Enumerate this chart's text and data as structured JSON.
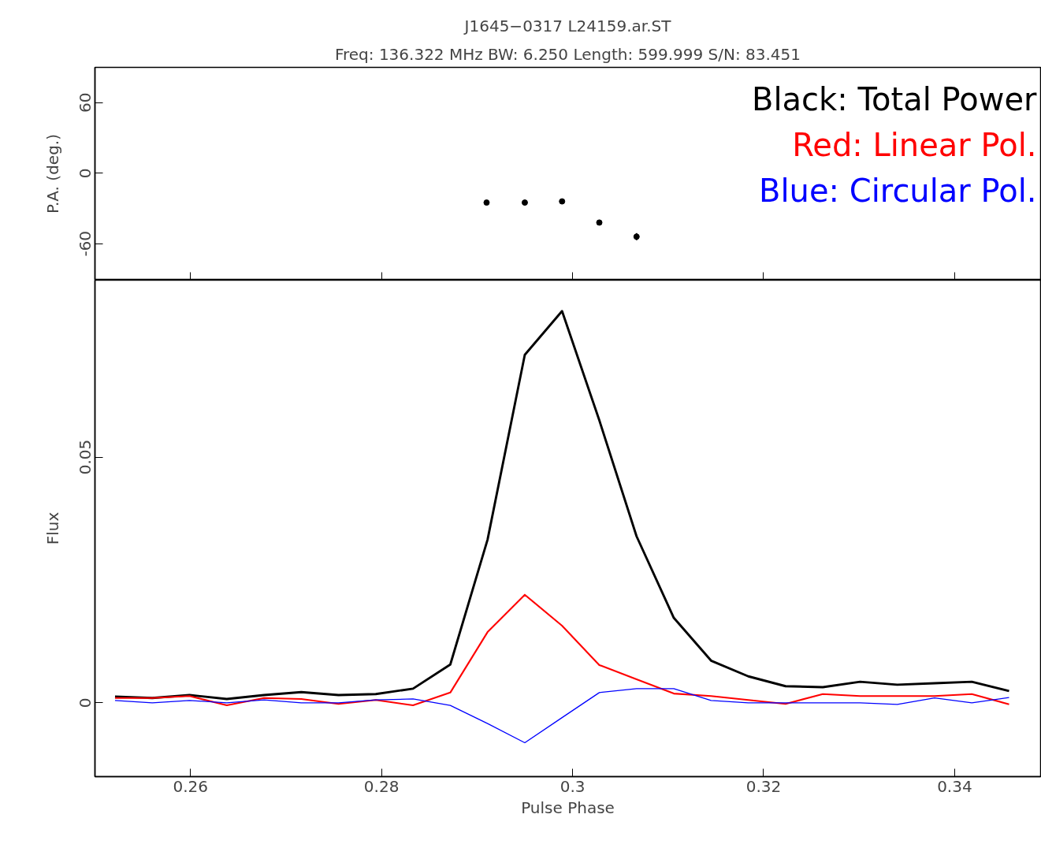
{
  "chart_data": [
    {
      "type": "scatter",
      "title": "J1645−0317 L24159.ar.ST",
      "subtitle": "Freq: 136.322 MHz BW: 6.250 Length: 599.999 S/N: 83.451",
      "ylabel": "P.A. (deg.)",
      "x": [
        0.291,
        0.295,
        0.2989,
        0.3028,
        0.3067
      ],
      "series": [
        {
          "color": "#000000",
          "values": [
            -25,
            -25,
            -24,
            -42,
            -54
          ],
          "errors": [
            1,
            1,
            1,
            1,
            3
          ]
        }
      ],
      "marker": "circle",
      "xlim": [
        0.25,
        0.349
      ],
      "ylim": [
        -91,
        90
      ],
      "yticks": [
        -60,
        0,
        60
      ],
      "xticks": [
        {
          "value": 0.26,
          "label": null
        },
        {
          "value": 0.28,
          "label": null
        },
        {
          "value": 0.3,
          "label": null
        },
        {
          "value": 0.32,
          "label": null
        },
        {
          "value": 0.34,
          "label": null
        }
      ],
      "tick_labels": "y",
      "grid": false
    },
    {
      "type": "line",
      "xlabel": "Pulse Phase",
      "ylabel": "Flux",
      "legend": "top right",
      "x": [
        0.2521,
        0.256,
        0.2599,
        0.2638,
        0.2677,
        0.2716,
        0.2755,
        0.2794,
        0.2833,
        0.2872,
        0.2911,
        0.295,
        0.2989,
        0.3028,
        0.3067,
        0.3106,
        0.3145,
        0.3184,
        0.3223,
        0.3262,
        0.3301,
        0.334,
        0.3379,
        0.3418,
        0.3457
      ],
      "series": [
        {
          "name": "Black: Total Power",
          "color": "#000000",
          "values": [
            0.0013,
            0.001,
            0.0016,
            0.0008,
            0.0016,
            0.0022,
            0.0016,
            0.0018,
            0.0029,
            0.0078,
            0.0332,
            0.0708,
            0.0797,
            0.0575,
            0.0339,
            0.0173,
            0.0086,
            0.0054,
            0.0034,
            0.0032,
            0.0043,
            0.0037,
            0.004,
            0.0043,
            0.0024
          ]
        },
        {
          "name": "Red: Linear Pol.",
          "color": "#ff0000",
          "values": [
            0.001,
            0.001,
            0.0014,
            -0.0005,
            0.001,
            0.0008,
            -0.0002,
            0.0006,
            -0.0005,
            0.0021,
            0.0144,
            0.022,
            0.0157,
            0.0077,
            0.0048,
            0.0019,
            0.0014,
            0.0006,
            -0.0002,
            0.0018,
            0.0014,
            0.0014,
            0.0014,
            0.0018,
            -0.0003
          ]
        },
        {
          "name": "Blue: Circular Pol.",
          "color": "#0000ff",
          "values": [
            0.0005,
            0,
            0.0005,
            0,
            0.0006,
            0,
            0,
            0.0006,
            0.0008,
            -0.0005,
            -0.0042,
            -0.0081,
            -0.003,
            0.0021,
            0.0029,
            0.0029,
            0.0005,
            0,
            0,
            0,
            0,
            -0.0003,
            0.001,
            0,
            0.0011
          ]
        }
      ],
      "xlim": [
        0.25,
        0.349
      ],
      "ylim": [
        -0.015,
        0.086
      ],
      "xticks": [
        0.26,
        0.28,
        0.3,
        0.32,
        0.34
      ],
      "yticks": [
        0,
        0.05
      ],
      "grid": false,
      "line_style": "solid",
      "marker": "none"
    }
  ]
}
